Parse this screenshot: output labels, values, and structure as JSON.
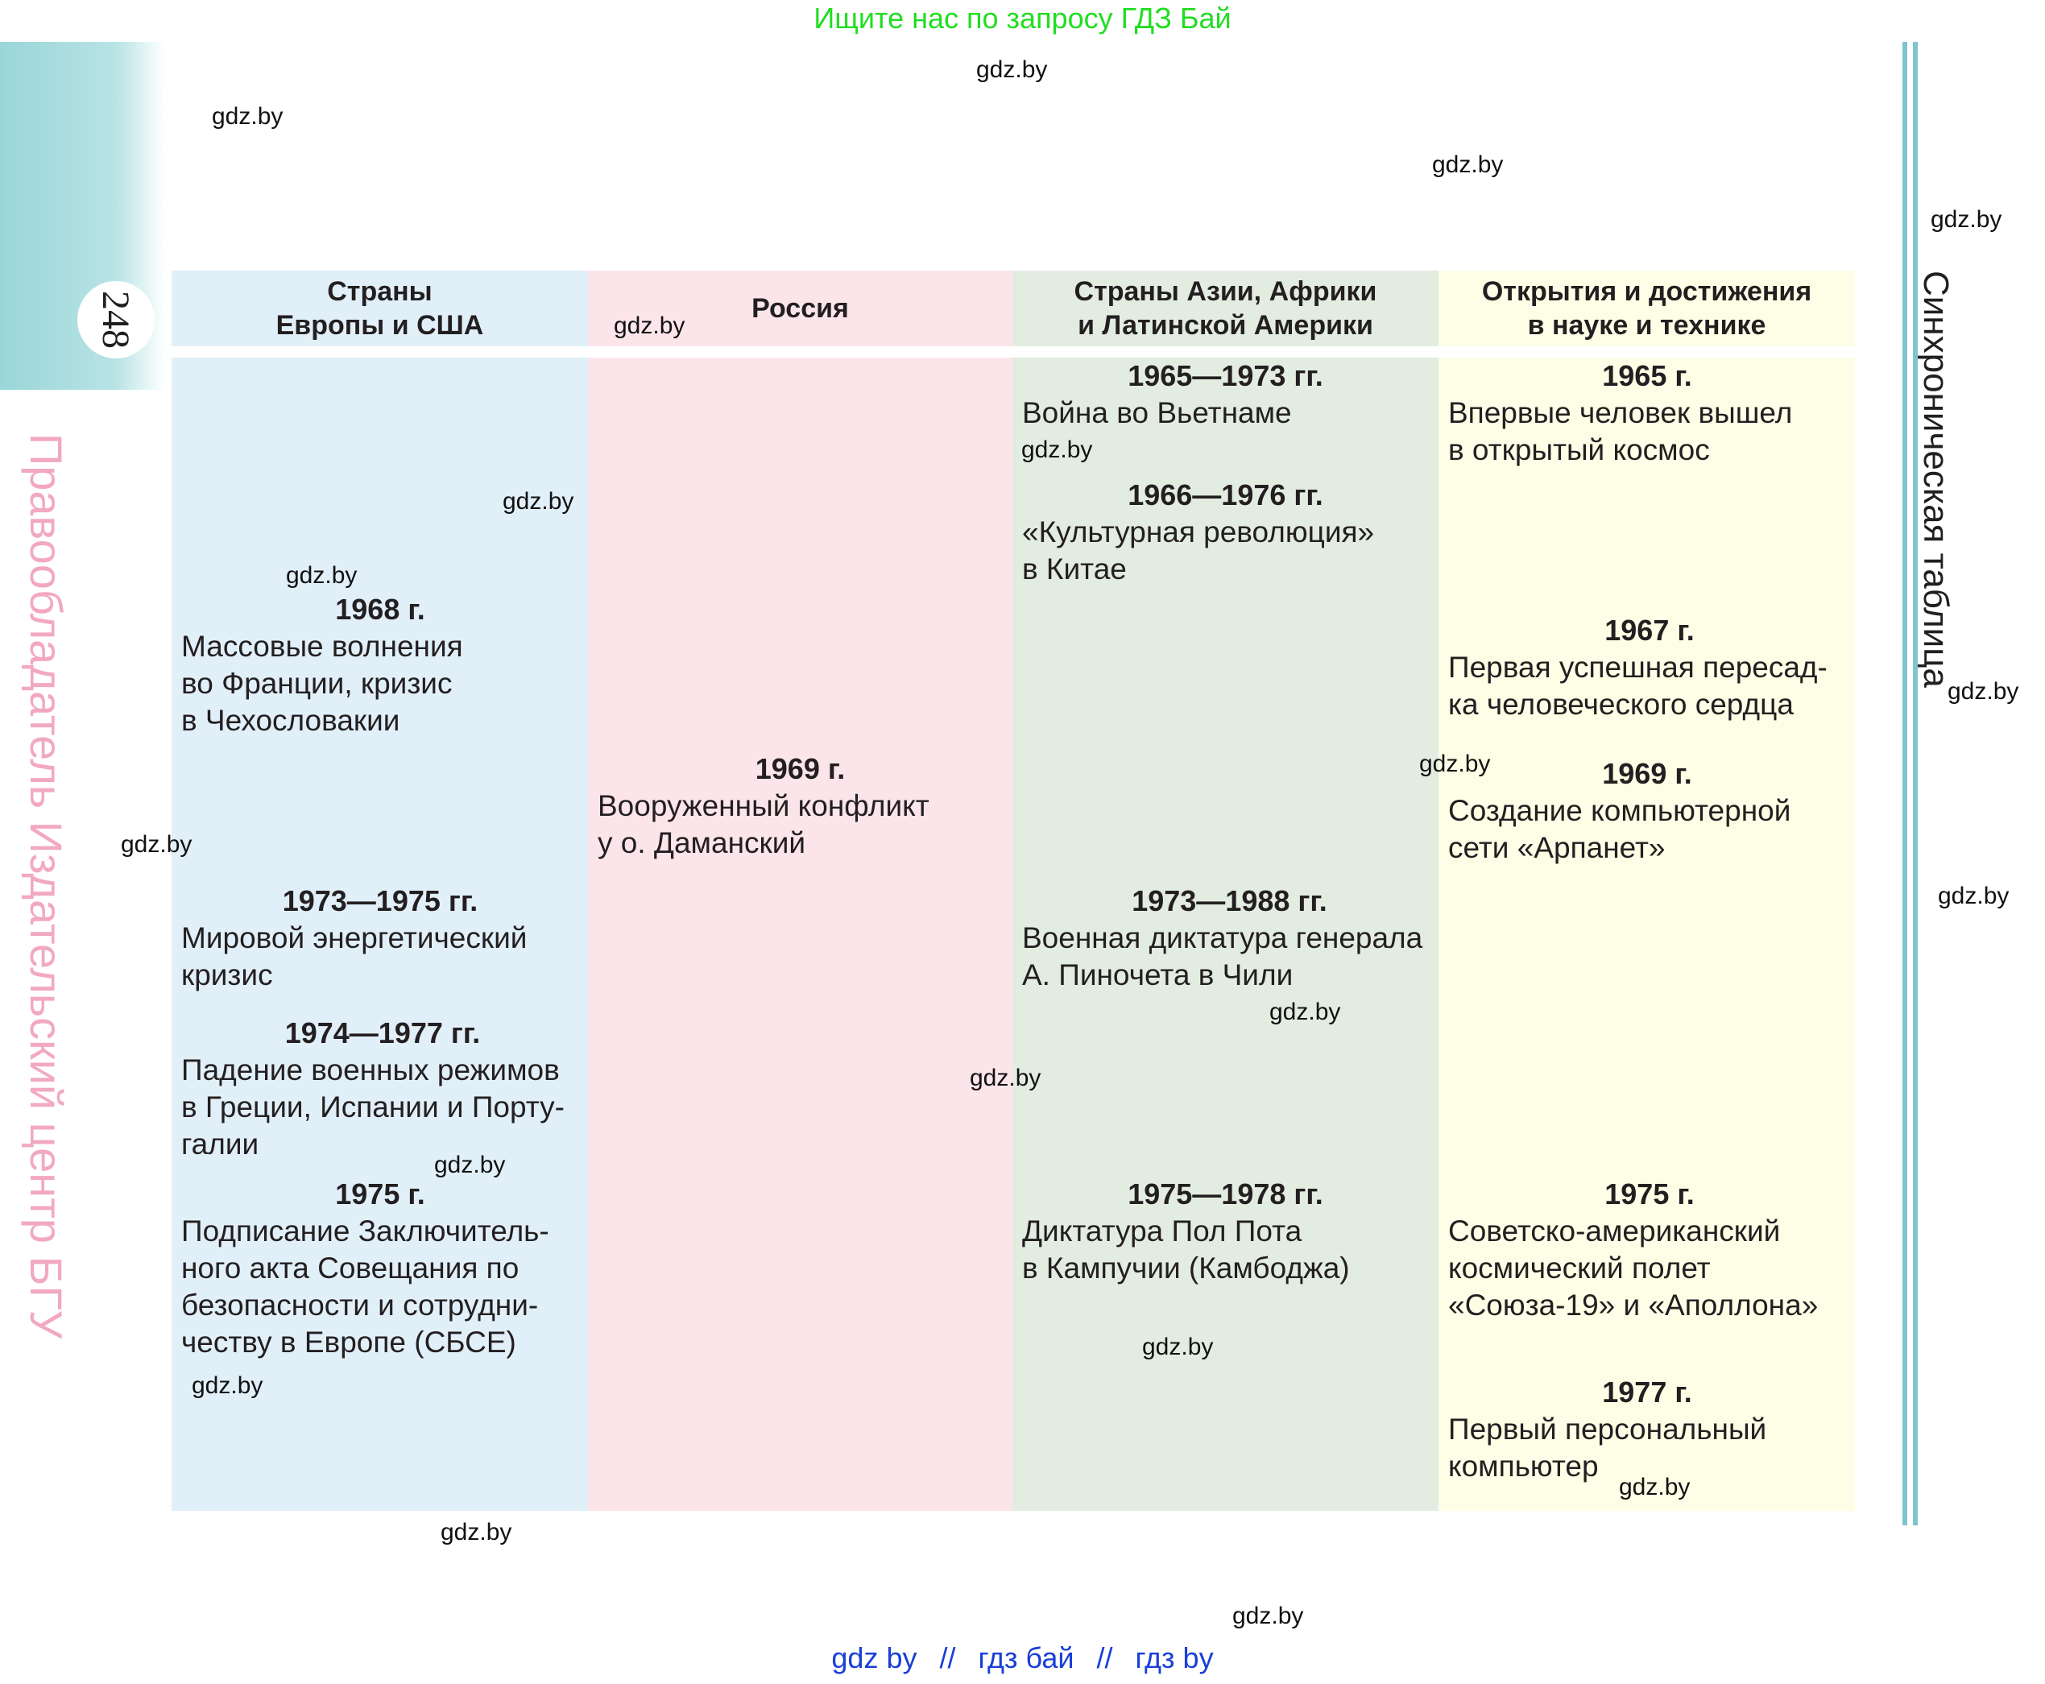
{
  "banner": "Ищите нас по запросу ГДЗ Бай",
  "page_number": "248",
  "publisher_vertical": "Правообладатель Издательский центр БГУ",
  "section_vertical": "Синхроническая таблица",
  "columns": {
    "europe": {
      "header": "Страны\nЕвропы и США"
    },
    "russia": {
      "header": "Россия"
    },
    "asia": {
      "header": "Страны Азии, Африки\nи Латинской Америки"
    },
    "science": {
      "header": "Открытия и достижения\nв науке и технике"
    }
  },
  "entries": {
    "europe": [
      {
        "year": "1968 г.",
        "text": "Массовые волнения\nво Франции, кризис\nв Чехословакии"
      },
      {
        "year": "1973—1975 гг.",
        "text": "Мировой энергетический\nкризис"
      },
      {
        "year": "1974—1977 гг.",
        "text": "Падение военных режимов\nв Греции, Испании и Порту-\nгалии"
      },
      {
        "year": "1975 г.",
        "text": "Подписание Заключитель-\nного акта Совещания по\nбезопасности и сотрудни-\nчеству в Европе (СБСЕ)"
      }
    ],
    "russia": [
      {
        "year": "1969 г.",
        "text": "Вооруженный конфликт\nу о. Даманский"
      }
    ],
    "asia": [
      {
        "year": "1965—1973 гг.",
        "text": "Война во Вьетнаме"
      },
      {
        "year": "1966—1976 гг.",
        "text": "«Культурная революция»\nв Китае"
      },
      {
        "year": "1973—1988 гг.",
        "text": "Военная диктатура генерала\nА. Пиночета в Чили"
      },
      {
        "year": "1975—1978 гг.",
        "text": "Диктатура Пол Пота\nв Кампучии (Камбоджа)"
      }
    ],
    "science": [
      {
        "year": "1965 г.",
        "text": "Впервые человек вышел\nв открытый космос"
      },
      {
        "year": "1967 г.",
        "text": "Первая успешная пересад-\nка человеческого сердца"
      },
      {
        "year": "1969 г.",
        "text": "Создание компьютерной\nсети «Арпанет»"
      },
      {
        "year": "1975 г.",
        "text": "Советско-американский\nкосмический полет\n«Союза-19» и «Аполлона»"
      },
      {
        "year": "1977 г.",
        "text": "Первый персональный\nкомпьютер"
      }
    ]
  },
  "watermark": "gdz.by",
  "footer_links": [
    "gdz by",
    "гдз бай",
    "гдз by"
  ],
  "footer_separator": "//",
  "colors": {
    "europe_bg": "#e1eff9",
    "russia_bg": "#fce5ea",
    "asia_bg": "#e3ece1",
    "science_bg": "#fefde6",
    "banner": "#22dd22",
    "footer_links": "#1a3fd6",
    "publisher_text": "#f2a9c0",
    "side_tab": "#9ad6d8"
  }
}
